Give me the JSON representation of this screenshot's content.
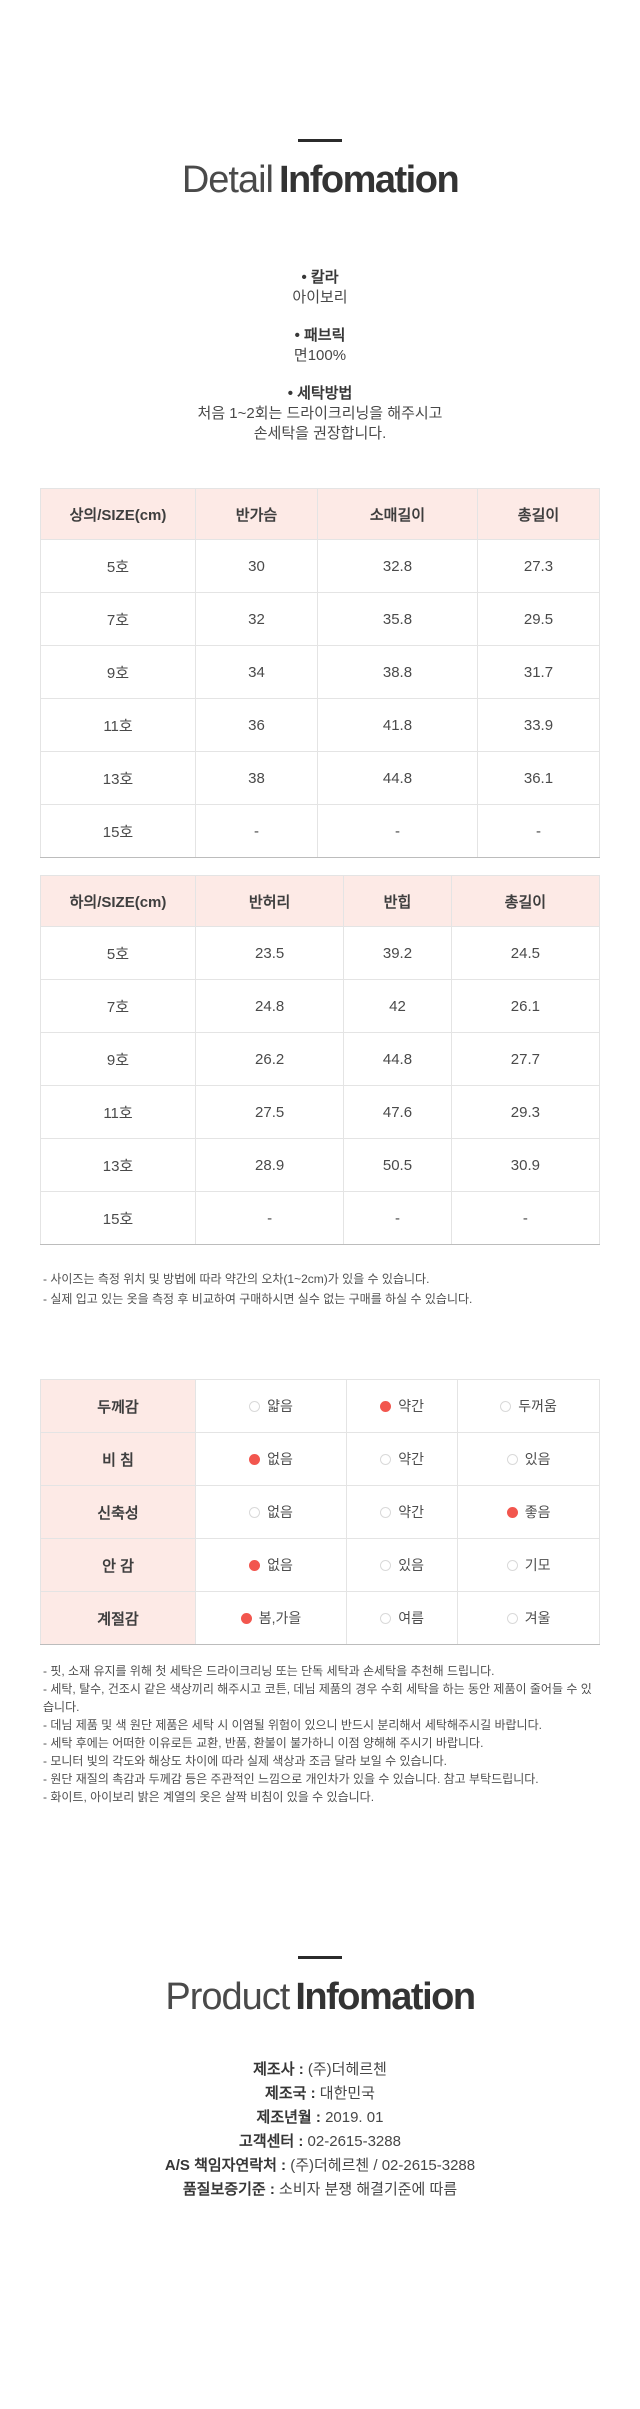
{
  "colors": {
    "header_pink": "#fdeae6",
    "radio_red": "#f2564e",
    "rule_dark": "#2b2b2b",
    "border_light": "#e4e4e4",
    "border_dark": "#bcbcbc"
  },
  "detail": {
    "title_light": "Detail",
    "title_bold": "Infomation",
    "bullet": "•",
    "items": [
      {
        "label": "칼라",
        "lines": [
          "아이보리"
        ]
      },
      {
        "label": "패브릭",
        "lines": [
          "면100%"
        ]
      },
      {
        "label": "세탁방법",
        "lines": [
          "처음 1~2회는 드라이크리닝을 해주시고",
          "손세탁을 권장합니다."
        ]
      }
    ]
  },
  "size_table_top": {
    "headers": [
      "상의/SIZE(cm)",
      "반가슴",
      "소매길이",
      "총길이"
    ],
    "rows": [
      [
        "5호",
        "30",
        "32.8",
        "27.3"
      ],
      [
        "7호",
        "32",
        "35.8",
        "29.5"
      ],
      [
        "9호",
        "34",
        "38.8",
        "31.7"
      ],
      [
        "11호",
        "36",
        "41.8",
        "33.9"
      ],
      [
        "13호",
        "38",
        "44.8",
        "36.1"
      ],
      [
        "15호",
        "-",
        "-",
        "-"
      ]
    ]
  },
  "size_table_bottom": {
    "headers": [
      "하의/SIZE(cm)",
      "반허리",
      "반힙",
      "총길이"
    ],
    "rows": [
      [
        "5호",
        "23.5",
        "39.2",
        "24.5"
      ],
      [
        "7호",
        "24.8",
        "42",
        "26.1"
      ],
      [
        "9호",
        "26.2",
        "44.8",
        "27.7"
      ],
      [
        "11호",
        "27.5",
        "47.6",
        "29.3"
      ],
      [
        "13호",
        "28.9",
        "50.5",
        "30.9"
      ],
      [
        "15호",
        "-",
        "-",
        "-"
      ]
    ]
  },
  "size_notes": [
    "- 사이즈는 측정 위치 및 방법에 따라 약간의 오차(1~2cm)가 있을 수 있습니다.",
    "- 실제 입고 있는 옷을 측정 후 비교하여 구매하시면 실수 없는 구매를 하실 수 있습니다."
  ],
  "attributes": {
    "rows": [
      {
        "label": "두께감",
        "options": [
          {
            "text": "얇음",
            "selected": false
          },
          {
            "text": "약간",
            "selected": true
          },
          {
            "text": "두꺼움",
            "selected": false
          }
        ]
      },
      {
        "label": "비 침",
        "options": [
          {
            "text": "없음",
            "selected": true
          },
          {
            "text": "약간",
            "selected": false
          },
          {
            "text": "있음",
            "selected": false
          }
        ]
      },
      {
        "label": "신축성",
        "options": [
          {
            "text": "없음",
            "selected": false
          },
          {
            "text": "약간",
            "selected": false
          },
          {
            "text": "좋음",
            "selected": true
          }
        ]
      },
      {
        "label": "안 감",
        "options": [
          {
            "text": "없음",
            "selected": true
          },
          {
            "text": "있음",
            "selected": false
          },
          {
            "text": "기모",
            "selected": false
          }
        ]
      },
      {
        "label": "계절감",
        "options": [
          {
            "text": "봄,가을",
            "selected": true
          },
          {
            "text": "여름",
            "selected": false
          },
          {
            "text": "겨울",
            "selected": false
          }
        ]
      }
    ]
  },
  "care_notes": [
    "- 핏, 소재 유지를 위해 첫 세탁은 드라이크리닝 또는 단독 세탁과 손세탁을 추천해 드립니다.",
    "- 세탁, 탈수, 건조시 같은 색상끼리 해주시고 코튼, 데님 제품의 경우 수회 세탁을 하는 동안 제품이 줄어들 수 있습니다.",
    "- 데님 제품 및 색 원단 제품은 세탁 시 이염될 위험이 있으니 반드시 분리해서 세탁해주시길 바랍니다.",
    "- 세탁 후에는 어떠한 이유로든 교환, 반품, 환불이 불가하니 이점 양해해 주시기 바랍니다.",
    "- 모니터 빛의 각도와 해상도 차이에 따라 실제 색상과 조금 달라 보일 수 있습니다.",
    "- 원단 재질의 촉감과 두께감 등은 주관적인 느낌으로 개인차가 있을 수 있습니다. 참고 부탁드립니다.",
    "- 화이트, 아이보리 밝은 계열의 옷은 살짝 비침이 있을 수 있습니다."
  ],
  "product": {
    "title_light": "Product",
    "title_bold": "Infomation",
    "separator": " : ",
    "rows": [
      {
        "label": "제조사",
        "value": "(주)더헤르첸"
      },
      {
        "label": "제조국",
        "value": "대한민국"
      },
      {
        "label": "제조년월",
        "value": "2019. 01"
      },
      {
        "label": "고객센터",
        "value": "02-2615-3288"
      },
      {
        "label": "A/S 책임자연락처",
        "value": "(주)더헤르첸 / 02-2615-3288"
      },
      {
        "label": "품질보증기준",
        "value": "소비자 분쟁 해결기준에 따름"
      }
    ]
  }
}
